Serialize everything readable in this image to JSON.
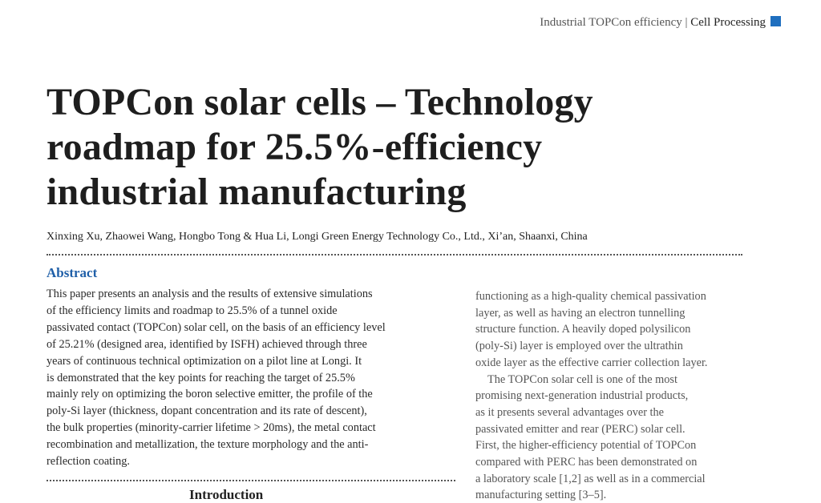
{
  "header": {
    "section": "Industrial TOPCon efficiency",
    "separator": "|",
    "category": "Cell Processing"
  },
  "title_lines": [
    "TOPCon solar cells – Technology",
    "roadmap for 25.5%-efficiency",
    "industrial manufacturing"
  ],
  "authors": "Xinxing Xu, Zhaowei Wang, Hongbo Tong & Hua Li, Longi Green Energy Technology Co., Ltd., Xi’an, Shaanxi, China",
  "abstract": {
    "heading": "Abstract",
    "lines": [
      "This paper presents an analysis and the results of extensive simulations",
      "of the efficiency limits and roadmap to 25.5% of a tunnel oxide",
      "passivated contact (TOPCon) solar cell, on the basis of an efficiency level",
      "of 25.21% (designed area, identified by ISFH) achieved through three",
      "years of continuous technical optimization on a pilot line at Longi. It",
      "is demonstrated that the key points for reaching the target of 25.5%",
      "mainly rely on optimizing the boron selective emitter, the profile of the",
      "poly-Si layer (thickness, dopant concentration and its rate of descent),",
      "the bulk properties (minority-carrier lifetime > 20ms), the metal contact",
      "recombination and metallization, the texture morphology and the anti-",
      "reflection coating."
    ]
  },
  "introduction_heading": "Introduction",
  "right_column": [
    "functioning as a high-quality chemical passivation",
    "layer, as well as having an electron tunnelling",
    "structure function. A heavily doped polysilicon",
    "(poly-Si) layer is employed over the ultrathin",
    "oxide layer as the effective carrier collection layer.",
    "The TOPCon solar cell is one of the most",
    "promising next-generation industrial products,",
    "as it presents several advantages over the",
    "passivated emitter and rear (PERC) solar cell.",
    "First, the higher-efficiency potential of TOPCon",
    "compared with PERC has been demonstrated on",
    "a laboratory scale [1,2] as well as in a commercial",
    "manufacturing setting [3–5]."
  ]
}
